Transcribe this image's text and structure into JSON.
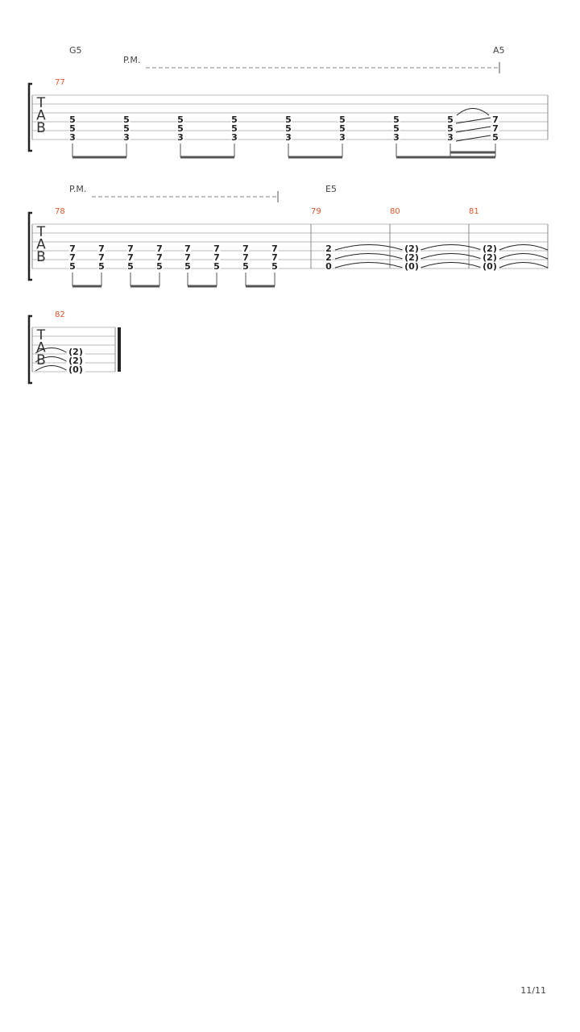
{
  "clef": [
    "T",
    "A",
    "B"
  ],
  "systems": [
    {
      "chord_labels": [
        "G5",
        "A5"
      ],
      "palm_mute": "P.M.",
      "measures": [
        {
          "number": "77",
          "beats": [
            [
              "5",
              "5",
              "3"
            ],
            [
              "5",
              "5",
              "3"
            ],
            [
              "5",
              "5",
              "3"
            ],
            [
              "5",
              "5",
              "3"
            ],
            [
              "5",
              "5",
              "3"
            ],
            [
              "5",
              "5",
              "3"
            ],
            [
              "5",
              "5",
              "3"
            ],
            [
              "5",
              "5",
              "3"
            ],
            [
              "7",
              "7",
              "5"
            ]
          ]
        }
      ]
    },
    {
      "chord_labels": [
        "E5"
      ],
      "palm_mute": "P.M.",
      "measures": [
        {
          "number": "78",
          "beats": [
            [
              "7",
              "7",
              "5"
            ],
            [
              "7",
              "7",
              "5"
            ],
            [
              "7",
              "7",
              "5"
            ],
            [
              "7",
              "7",
              "5"
            ],
            [
              "7",
              "7",
              "5"
            ],
            [
              "7",
              "7",
              "5"
            ],
            [
              "7",
              "7",
              "5"
            ],
            [
              "7",
              "7",
              "5"
            ]
          ]
        },
        {
          "number": "79",
          "beats": [
            [
              "2",
              "2",
              "0"
            ]
          ]
        },
        {
          "number": "80",
          "beats": [
            [
              "(2)",
              "(2)",
              "(0)"
            ]
          ]
        },
        {
          "number": "81",
          "beats": [
            [
              "(2)",
              "(2)",
              "(0)"
            ]
          ]
        }
      ]
    },
    {
      "chord_labels": [],
      "measures": [
        {
          "number": "82",
          "beats": [
            [
              "(2)",
              "(2)",
              "(0)"
            ]
          ]
        }
      ]
    }
  ],
  "page_number": "11/11"
}
